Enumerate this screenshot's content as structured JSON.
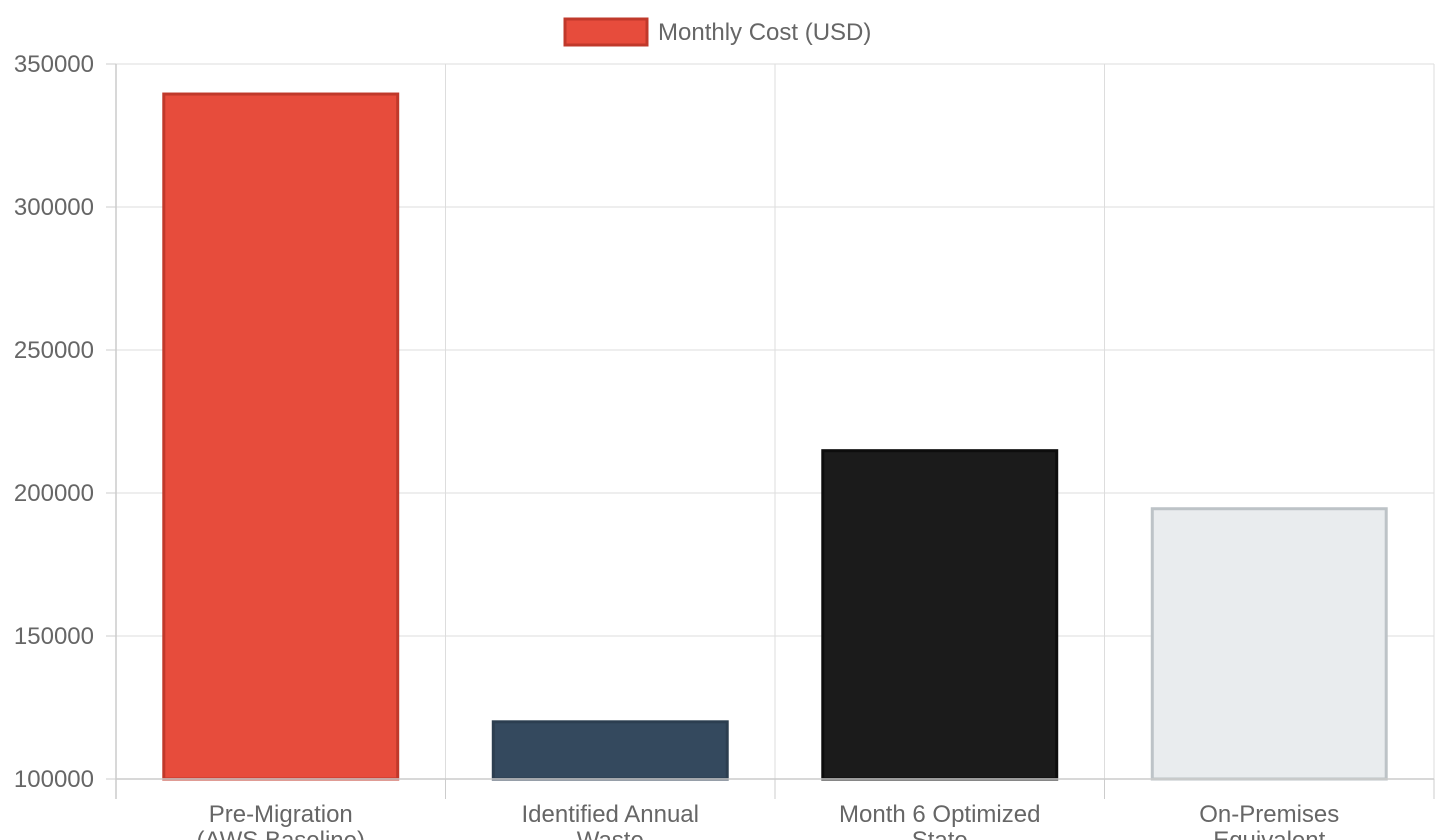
{
  "chart_data": {
    "type": "bar",
    "categories": [
      [
        "Pre-Migration",
        "(AWS Baseline)"
      ],
      [
        "Identified Annual",
        "Waste"
      ],
      [
        "Month 6 Optimized",
        "State"
      ],
      [
        "On-Premises",
        "Equivalent"
      ]
    ],
    "series": [
      {
        "name": "Monthly Cost (USD)",
        "values": [
          339500,
          120000,
          214800,
          194500
        ],
        "fill_colors": [
          "#e74c3c",
          "#34495e",
          "#1b1b1b",
          "#e9ecee"
        ],
        "border_colors": [
          "#c0392b",
          "#2c3e50",
          "#0d0d0d",
          "#bdc3c7"
        ]
      }
    ],
    "ylim": [
      100000,
      350000
    ],
    "yticks": [
      100000,
      150000,
      200000,
      250000,
      300000,
      350000
    ],
    "grid": true,
    "legend": "top-center",
    "legend_swatch_fill": "#e74c3c",
    "legend_swatch_border": "#c0392b"
  }
}
